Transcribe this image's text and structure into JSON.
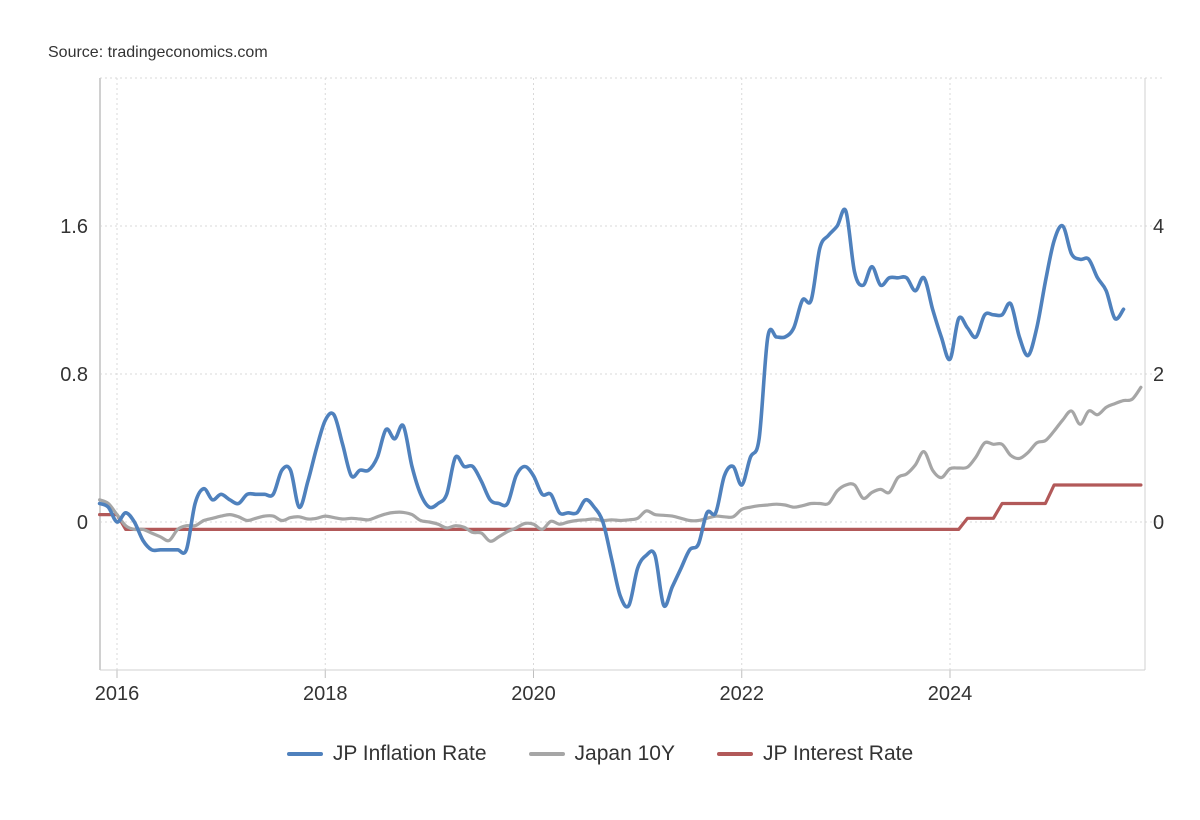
{
  "source": "Source: tradingeconomics.com",
  "colors": {
    "inflation": "#4f81bd",
    "bond": "#a6a6a6",
    "interest": "#b25959"
  },
  "chart_data": {
    "type": "line",
    "title": "",
    "xlabel": "",
    "ylabel": "",
    "x_ticks": [
      "2016",
      "2018",
      "2020",
      "2022",
      "2024"
    ],
    "y_left_ticks": [
      "0",
      "0.8",
      "1.6"
    ],
    "y_right_ticks": [
      "0",
      "2",
      "4"
    ],
    "y_left_range": [
      -0.8,
      2.4
    ],
    "y_right_range": [
      -2.0,
      6.0
    ],
    "x_range": [
      "2015-11",
      "2025-11"
    ],
    "grid": true,
    "legend_position": "bottom",
    "series": [
      {
        "name": "JP Inflation Rate",
        "key": "inflation",
        "axis": "left",
        "points": [
          [
            "2015-11",
            0.1
          ],
          [
            "2015-12",
            0.08
          ],
          [
            "2016-01",
            0.0
          ],
          [
            "2016-02",
            0.05
          ],
          [
            "2016-03",
            0.0
          ],
          [
            "2016-04",
            -0.1
          ],
          [
            "2016-05",
            -0.15
          ],
          [
            "2016-06",
            -0.15
          ],
          [
            "2016-07",
            -0.15
          ],
          [
            "2016-08",
            -0.15
          ],
          [
            "2016-09",
            -0.15
          ],
          [
            "2016-10",
            0.1
          ],
          [
            "2016-11",
            0.18
          ],
          [
            "2016-12",
            0.12
          ],
          [
            "2017-01",
            0.15
          ],
          [
            "2017-02",
            0.12
          ],
          [
            "2017-03",
            0.1
          ],
          [
            "2017-04",
            0.15
          ],
          [
            "2017-05",
            0.15
          ],
          [
            "2017-06",
            0.15
          ],
          [
            "2017-07",
            0.15
          ],
          [
            "2017-08",
            0.28
          ],
          [
            "2017-09",
            0.28
          ],
          [
            "2017-10",
            0.08
          ],
          [
            "2017-11",
            0.22
          ],
          [
            "2017-12",
            0.4
          ],
          [
            "2018-01",
            0.55
          ],
          [
            "2018-02",
            0.58
          ],
          [
            "2018-03",
            0.42
          ],
          [
            "2018-04",
            0.25
          ],
          [
            "2018-05",
            0.28
          ],
          [
            "2018-06",
            0.28
          ],
          [
            "2018-07",
            0.35
          ],
          [
            "2018-08",
            0.5
          ],
          [
            "2018-09",
            0.45
          ],
          [
            "2018-10",
            0.52
          ],
          [
            "2018-11",
            0.3
          ],
          [
            "2018-12",
            0.15
          ],
          [
            "2019-01",
            0.08
          ],
          [
            "2019-02",
            0.1
          ],
          [
            "2019-03",
            0.15
          ],
          [
            "2019-04",
            0.35
          ],
          [
            "2019-05",
            0.3
          ],
          [
            "2019-06",
            0.3
          ],
          [
            "2019-07",
            0.22
          ],
          [
            "2019-08",
            0.12
          ],
          [
            "2019-09",
            0.1
          ],
          [
            "2019-10",
            0.1
          ],
          [
            "2019-11",
            0.25
          ],
          [
            "2019-12",
            0.3
          ],
          [
            "2020-01",
            0.25
          ],
          [
            "2020-02",
            0.15
          ],
          [
            "2020-03",
            0.15
          ],
          [
            "2020-04",
            0.05
          ],
          [
            "2020-05",
            0.05
          ],
          [
            "2020-06",
            0.05
          ],
          [
            "2020-07",
            0.12
          ],
          [
            "2020-08",
            0.08
          ],
          [
            "2020-09",
            0.0
          ],
          [
            "2020-10",
            -0.2
          ],
          [
            "2020-11",
            -0.4
          ],
          [
            "2020-12",
            -0.45
          ],
          [
            "2021-01",
            -0.25
          ],
          [
            "2021-02",
            -0.18
          ],
          [
            "2021-03",
            -0.18
          ],
          [
            "2021-04",
            -0.45
          ],
          [
            "2021-05",
            -0.35
          ],
          [
            "2021-06",
            -0.25
          ],
          [
            "2021-07",
            -0.15
          ],
          [
            "2021-08",
            -0.12
          ],
          [
            "2021-09",
            0.05
          ],
          [
            "2021-10",
            0.05
          ],
          [
            "2021-11",
            0.25
          ],
          [
            "2021-12",
            0.3
          ],
          [
            "2022-01",
            0.2
          ],
          [
            "2022-02",
            0.35
          ],
          [
            "2022-03",
            0.45
          ],
          [
            "2022-04",
            1.0
          ],
          [
            "2022-05",
            1.0
          ],
          [
            "2022-06",
            1.0
          ],
          [
            "2022-07",
            1.05
          ],
          [
            "2022-08",
            1.2
          ],
          [
            "2022-09",
            1.2
          ],
          [
            "2022-10",
            1.48
          ],
          [
            "2022-11",
            1.55
          ],
          [
            "2022-12",
            1.6
          ],
          [
            "2023-01",
            1.68
          ],
          [
            "2023-02",
            1.35
          ],
          [
            "2023-03",
            1.28
          ],
          [
            "2023-04",
            1.38
          ],
          [
            "2023-05",
            1.28
          ],
          [
            "2023-06",
            1.32
          ],
          [
            "2023-07",
            1.32
          ],
          [
            "2023-08",
            1.32
          ],
          [
            "2023-09",
            1.25
          ],
          [
            "2023-10",
            1.32
          ],
          [
            "2023-11",
            1.15
          ],
          [
            "2023-12",
            1.0
          ],
          [
            "2024-01",
            0.88
          ],
          [
            "2024-02",
            1.1
          ],
          [
            "2024-03",
            1.05
          ],
          [
            "2024-04",
            1.0
          ],
          [
            "2024-05",
            1.12
          ],
          [
            "2024-06",
            1.12
          ],
          [
            "2024-07",
            1.12
          ],
          [
            "2024-08",
            1.18
          ],
          [
            "2024-09",
            1.0
          ],
          [
            "2024-10",
            0.9
          ],
          [
            "2024-11",
            1.05
          ],
          [
            "2024-12",
            1.3
          ],
          [
            "2025-01",
            1.52
          ],
          [
            "2025-02",
            1.6
          ],
          [
            "2025-03",
            1.45
          ],
          [
            "2025-04",
            1.42
          ],
          [
            "2025-05",
            1.42
          ],
          [
            "2025-06",
            1.32
          ],
          [
            "2025-07",
            1.25
          ],
          [
            "2025-08",
            1.1
          ],
          [
            "2025-09",
            1.15
          ]
        ]
      },
      {
        "name": "Japan 10Y",
        "key": "bond",
        "axis": "right",
        "points": [
          [
            "2015-11",
            0.3
          ],
          [
            "2015-12",
            0.25
          ],
          [
            "2016-01",
            0.1
          ],
          [
            "2016-02",
            -0.05
          ],
          [
            "2016-03",
            -0.1
          ],
          [
            "2016-04",
            -0.1
          ],
          [
            "2016-05",
            -0.15
          ],
          [
            "2016-06",
            -0.2
          ],
          [
            "2016-07",
            -0.25
          ],
          [
            "2016-08",
            -0.1
          ],
          [
            "2016-09",
            -0.05
          ],
          [
            "2016-10",
            -0.05
          ],
          [
            "2016-11",
            0.02
          ],
          [
            "2016-12",
            0.05
          ],
          [
            "2017-01",
            0.08
          ],
          [
            "2017-02",
            0.1
          ],
          [
            "2017-03",
            0.07
          ],
          [
            "2017-04",
            0.02
          ],
          [
            "2017-05",
            0.05
          ],
          [
            "2017-06",
            0.08
          ],
          [
            "2017-07",
            0.08
          ],
          [
            "2017-08",
            0.02
          ],
          [
            "2017-09",
            0.06
          ],
          [
            "2017-10",
            0.07
          ],
          [
            "2017-11",
            0.04
          ],
          [
            "2017-12",
            0.05
          ],
          [
            "2018-01",
            0.08
          ],
          [
            "2018-02",
            0.06
          ],
          [
            "2018-03",
            0.04
          ],
          [
            "2018-04",
            0.05
          ],
          [
            "2018-05",
            0.04
          ],
          [
            "2018-06",
            0.03
          ],
          [
            "2018-07",
            0.07
          ],
          [
            "2018-08",
            0.11
          ],
          [
            "2018-09",
            0.13
          ],
          [
            "2018-10",
            0.13
          ],
          [
            "2018-11",
            0.1
          ],
          [
            "2018-12",
            0.02
          ],
          [
            "2019-01",
            0.0
          ],
          [
            "2019-02",
            -0.03
          ],
          [
            "2019-03",
            -0.08
          ],
          [
            "2019-04",
            -0.05
          ],
          [
            "2019-05",
            -0.07
          ],
          [
            "2019-06",
            -0.14
          ],
          [
            "2019-07",
            -0.15
          ],
          [
            "2019-08",
            -0.26
          ],
          [
            "2019-09",
            -0.2
          ],
          [
            "2019-10",
            -0.13
          ],
          [
            "2019-11",
            -0.08
          ],
          [
            "2019-12",
            -0.02
          ],
          [
            "2020-01",
            -0.03
          ],
          [
            "2020-02",
            -0.1
          ],
          [
            "2020-03",
            0.01
          ],
          [
            "2020-04",
            -0.03
          ],
          [
            "2020-05",
            0.0
          ],
          [
            "2020-06",
            0.02
          ],
          [
            "2020-07",
            0.03
          ],
          [
            "2020-08",
            0.04
          ],
          [
            "2020-09",
            0.02
          ],
          [
            "2020-10",
            0.03
          ],
          [
            "2020-11",
            0.02
          ],
          [
            "2020-12",
            0.03
          ],
          [
            "2021-01",
            0.05
          ],
          [
            "2021-02",
            0.15
          ],
          [
            "2021-03",
            0.1
          ],
          [
            "2021-04",
            0.09
          ],
          [
            "2021-05",
            0.08
          ],
          [
            "2021-06",
            0.05
          ],
          [
            "2021-07",
            0.02
          ],
          [
            "2021-08",
            0.02
          ],
          [
            "2021-09",
            0.05
          ],
          [
            "2021-10",
            0.08
          ],
          [
            "2021-11",
            0.07
          ],
          [
            "2021-12",
            0.07
          ],
          [
            "2022-01",
            0.17
          ],
          [
            "2022-02",
            0.2
          ],
          [
            "2022-03",
            0.22
          ],
          [
            "2022-04",
            0.23
          ],
          [
            "2022-05",
            0.24
          ],
          [
            "2022-06",
            0.23
          ],
          [
            "2022-07",
            0.2
          ],
          [
            "2022-08",
            0.22
          ],
          [
            "2022-09",
            0.25
          ],
          [
            "2022-10",
            0.25
          ],
          [
            "2022-11",
            0.25
          ],
          [
            "2022-12",
            0.42
          ],
          [
            "2023-01",
            0.5
          ],
          [
            "2023-02",
            0.5
          ],
          [
            "2023-03",
            0.32
          ],
          [
            "2023-04",
            0.4
          ],
          [
            "2023-05",
            0.44
          ],
          [
            "2023-06",
            0.4
          ],
          [
            "2023-07",
            0.6
          ],
          [
            "2023-08",
            0.65
          ],
          [
            "2023-09",
            0.77
          ],
          [
            "2023-10",
            0.95
          ],
          [
            "2023-11",
            0.7
          ],
          [
            "2023-12",
            0.6
          ],
          [
            "2024-01",
            0.72
          ],
          [
            "2024-02",
            0.73
          ],
          [
            "2024-03",
            0.74
          ],
          [
            "2024-04",
            0.88
          ],
          [
            "2024-05",
            1.07
          ],
          [
            "2024-06",
            1.05
          ],
          [
            "2024-07",
            1.05
          ],
          [
            "2024-08",
            0.9
          ],
          [
            "2024-09",
            0.86
          ],
          [
            "2024-10",
            0.94
          ],
          [
            "2024-11",
            1.07
          ],
          [
            "2024-12",
            1.1
          ],
          [
            "2025-01",
            1.23
          ],
          [
            "2025-02",
            1.38
          ],
          [
            "2025-03",
            1.5
          ],
          [
            "2025-04",
            1.32
          ],
          [
            "2025-05",
            1.5
          ],
          [
            "2025-06",
            1.45
          ],
          [
            "2025-07",
            1.55
          ],
          [
            "2025-08",
            1.6
          ],
          [
            "2025-09",
            1.64
          ],
          [
            "2025-10",
            1.66
          ],
          [
            "2025-11",
            1.82
          ]
        ]
      },
      {
        "name": "JP Interest Rate",
        "key": "interest",
        "axis": "right",
        "points": [
          [
            "2015-11",
            0.1
          ],
          [
            "2016-01",
            0.1
          ],
          [
            "2016-02",
            -0.1
          ],
          [
            "2024-02",
            -0.1
          ],
          [
            "2024-03",
            0.05
          ],
          [
            "2024-06",
            0.05
          ],
          [
            "2024-07",
            0.25
          ],
          [
            "2024-12",
            0.25
          ],
          [
            "2025-01",
            0.5
          ],
          [
            "2025-11",
            0.5
          ]
        ]
      }
    ]
  }
}
